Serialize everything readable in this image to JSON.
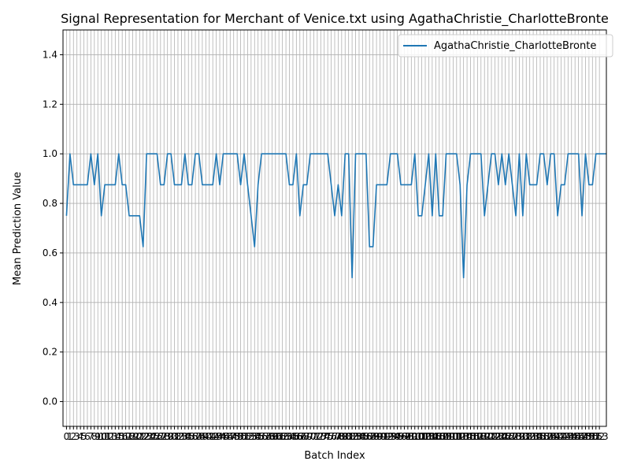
{
  "chart_data": {
    "type": "line",
    "title": "Signal Representation for Merchant of Venice.txt using AgathaChristie_CharlotteBronte",
    "xlabel": "Batch Index",
    "ylabel": "Mean Prediction Value",
    "xlim": [
      -1,
      155
    ],
    "ylim": [
      -0.1,
      1.5
    ],
    "ytick_labels": [
      "0.0",
      "0.2",
      "0.4",
      "0.6",
      "0.8",
      "1.0",
      "1.2",
      "1.4"
    ],
    "x_tick_count": 154,
    "grid": true,
    "legend_position": "top-right",
    "series": [
      {
        "name": "AgathaChristie_CharlotteBronte",
        "color": "#1f77b4",
        "values": [
          0.75,
          1.0,
          0.875,
          0.875,
          0.875,
          0.875,
          0.875,
          1.0,
          0.875,
          1.0,
          0.75,
          0.875,
          0.875,
          0.875,
          0.875,
          1.0,
          0.875,
          0.875,
          0.75,
          0.75,
          0.75,
          0.75,
          0.625,
          1.0,
          1.0,
          1.0,
          1.0,
          0.875,
          0.875,
          1.0,
          1.0,
          0.875,
          0.875,
          0.875,
          1.0,
          0.875,
          0.875,
          1.0,
          1.0,
          0.875,
          0.875,
          0.875,
          0.875,
          1.0,
          0.875,
          1.0,
          1.0,
          1.0,
          1.0,
          1.0,
          0.875,
          1.0,
          0.875,
          0.75,
          0.625,
          0.875,
          1.0,
          1.0,
          1.0,
          1.0,
          1.0,
          1.0,
          1.0,
          1.0,
          0.875,
          0.875,
          1.0,
          0.75,
          0.875,
          0.875,
          1.0,
          1.0,
          1.0,
          1.0,
          1.0,
          1.0,
          0.875,
          0.75,
          0.875,
          0.75,
          1.0,
          1.0,
          0.5,
          1.0,
          1.0,
          1.0,
          1.0,
          0.625,
          0.625,
          0.875,
          0.875,
          0.875,
          0.875,
          1.0,
          1.0,
          1.0,
          0.875,
          0.875,
          0.875,
          0.875,
          1.0,
          0.75,
          0.75,
          0.875,
          1.0,
          0.75,
          1.0,
          0.75,
          0.75,
          1.0,
          1.0,
          1.0,
          1.0,
          0.875,
          0.5,
          0.875,
          1.0,
          1.0,
          1.0,
          1.0,
          0.75,
          0.875,
          1.0,
          1.0,
          0.875,
          1.0,
          0.875,
          1.0,
          0.875,
          0.75,
          1.0,
          0.75,
          1.0,
          0.875,
          0.875,
          0.875,
          1.0,
          1.0,
          0.875,
          1.0,
          1.0,
          0.75,
          0.875,
          0.875,
          1.0,
          1.0,
          1.0,
          1.0,
          0.75,
          1.0,
          0.875,
          0.875,
          1.0,
          1.0,
          1.0,
          1.0
        ]
      }
    ]
  }
}
